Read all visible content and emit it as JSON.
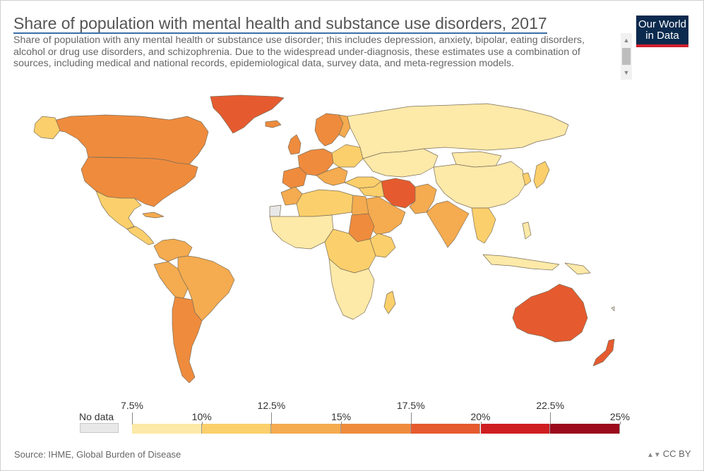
{
  "header": {
    "title": "Share of population with mental health and substance use disorders, 2017",
    "subtitle": "Share of population with any mental health or substance use disorder; this includes depression, anxiety, bipolar, eating disorders, alcohol or drug use disorders, and schizophrenia. Due to the widespread under-diagnosis, these estimates use a combination of sources, including medical and national records, epidemiological data, survey data, and meta-regression models."
  },
  "logo": {
    "line1": "Our World",
    "line2": "in Data"
  },
  "colors": {
    "scale": [
      "#fde9a8",
      "#fbcf6b",
      "#f5ab4f",
      "#ef8b3d",
      "#e65a2f",
      "#cf1e22",
      "#9b0a1d"
    ],
    "no_data": "#e8e8e8",
    "ocean": "#ffffff",
    "border": "#7c6f58",
    "title_underline": "#3c6ea8"
  },
  "legend": {
    "no_data_label": "No data",
    "ticks": [
      "7.5%",
      "10%",
      "12.5%",
      "15%",
      "17.5%",
      "20%",
      "22.5%",
      "25%"
    ]
  },
  "footer": {
    "source": "Source: IHME, Global Burden of Disease",
    "license": "CC BY"
  },
  "scrollbar": {
    "up_icon": "triangle-up-icon",
    "down_icon": "triangle-down-icon"
  }
}
